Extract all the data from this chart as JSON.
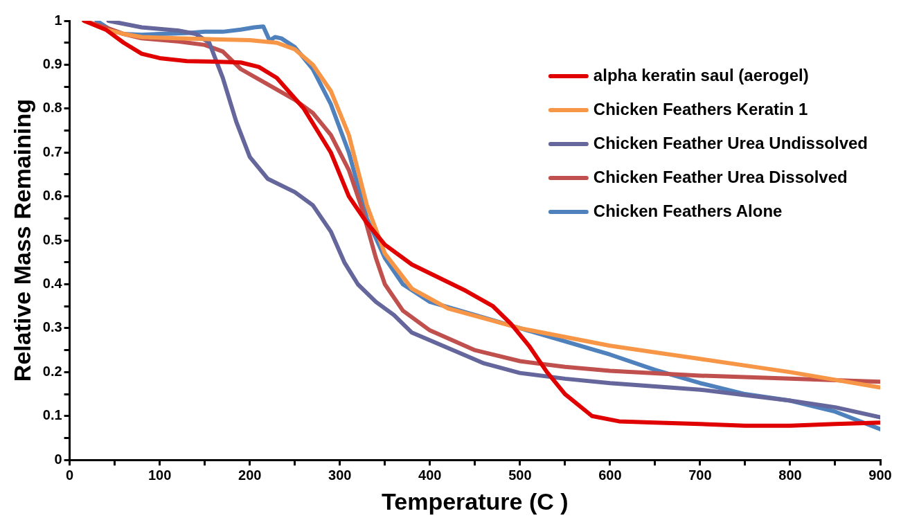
{
  "chart_data": {
    "type": "line",
    "xlabel": "Temperature (C )",
    "ylabel": "Relative Mass Remaining",
    "xlim": [
      0,
      900
    ],
    "ylim": [
      0,
      1
    ],
    "xticks": [
      0,
      {
        "value": 50,
        "label": null
      },
      100,
      {
        "value": 150,
        "label": null
      },
      200,
      {
        "value": 250,
        "label": null
      },
      300,
      {
        "value": 350,
        "label": null
      },
      400,
      {
        "value": 450,
        "label": null
      },
      500,
      {
        "value": 550,
        "label": null
      },
      600,
      {
        "value": 650,
        "label": null
      },
      700,
      {
        "value": 750,
        "label": null
      },
      800,
      {
        "value": 850,
        "label": null
      },
      900
    ],
    "yticks": [
      0,
      {
        "value": 0.05,
        "label": null
      },
      0.1,
      {
        "value": 0.15,
        "label": null
      },
      0.2,
      {
        "value": 0.25,
        "label": null
      },
      0.3,
      {
        "value": 0.35,
        "label": null
      },
      0.4,
      {
        "value": 0.45,
        "label": null
      },
      0.5,
      {
        "value": 0.55,
        "label": null
      },
      0.6,
      {
        "value": 0.65,
        "label": null
      },
      0.7,
      {
        "value": 0.75,
        "label": null
      },
      0.8,
      {
        "value": 0.85,
        "label": null
      },
      0.9,
      {
        "value": 0.95,
        "label": null
      },
      1
    ],
    "grid": false,
    "legend": "top right",
    "marker": "none",
    "line_style": "solid",
    "series": [
      {
        "name": "alpha keratin saul (aerogel)",
        "color": "#e00000",
        "x": [
          16,
          40,
          60,
          80,
          100,
          130,
          160,
          190,
          210,
          230,
          260,
          290,
          310,
          330,
          350,
          380,
          410,
          440,
          470,
          490,
          510,
          530,
          550,
          580,
          610,
          650,
          700,
          750,
          800,
          850,
          900
        ],
        "values": [
          1.0,
          0.98,
          0.95,
          0.925,
          0.915,
          0.908,
          0.907,
          0.905,
          0.895,
          0.87,
          0.8,
          0.7,
          0.6,
          0.54,
          0.49,
          0.445,
          0.415,
          0.385,
          0.35,
          0.31,
          0.26,
          0.2,
          0.15,
          0.1,
          0.088,
          0.085,
          0.082,
          0.078,
          0.078,
          0.082,
          0.085
        ]
      },
      {
        "name": "Chicken Feathers Keratin 1",
        "color": "#f79646",
        "x": [
          16,
          40,
          60,
          80,
          120,
          160,
          200,
          230,
          250,
          270,
          290,
          310,
          330,
          350,
          380,
          420,
          500,
          600,
          700,
          800,
          900
        ],
        "values": [
          1.0,
          0.98,
          0.97,
          0.963,
          0.96,
          0.958,
          0.956,
          0.95,
          0.935,
          0.9,
          0.84,
          0.74,
          0.58,
          0.47,
          0.39,
          0.345,
          0.3,
          0.26,
          0.23,
          0.2,
          0.165
        ]
      },
      {
        "name": "Chicken Feather Urea Undissolved",
        "color": "#65669b",
        "x": [
          43,
          80,
          120,
          140,
          155,
          170,
          185,
          200,
          220,
          250,
          270,
          290,
          305,
          320,
          340,
          360,
          380,
          420,
          460,
          500,
          550,
          600,
          700,
          800,
          850,
          900
        ],
        "values": [
          1.0,
          0.985,
          0.978,
          0.97,
          0.95,
          0.87,
          0.77,
          0.69,
          0.64,
          0.61,
          0.58,
          0.52,
          0.45,
          0.4,
          0.36,
          0.33,
          0.29,
          0.255,
          0.22,
          0.198,
          0.185,
          0.175,
          0.16,
          0.135,
          0.12,
          0.097
        ]
      },
      {
        "name": "Chicken Feather Urea Dissolved",
        "color": "#c0504d",
        "x": [
          16,
          40,
          60,
          80,
          120,
          150,
          170,
          190,
          220,
          250,
          270,
          290,
          310,
          325,
          340,
          350,
          370,
          400,
          450,
          500,
          550,
          600,
          700,
          800,
          900
        ],
        "values": [
          1.0,
          0.985,
          0.97,
          0.96,
          0.953,
          0.945,
          0.93,
          0.89,
          0.855,
          0.82,
          0.79,
          0.74,
          0.66,
          0.57,
          0.46,
          0.4,
          0.34,
          0.295,
          0.25,
          0.225,
          0.212,
          0.203,
          0.192,
          0.185,
          0.178
        ]
      },
      {
        "name": "Chicken Feathers Alone",
        "color": "#4f81bd",
        "x": [
          30,
          45,
          60,
          80,
          100,
          130,
          150,
          170,
          190,
          205,
          215,
          222,
          228,
          235,
          250,
          270,
          290,
          310,
          330,
          350,
          370,
          400,
          450,
          500,
          550,
          600,
          650,
          700,
          750,
          800,
          850,
          900
        ],
        "values": [
          1.0,
          0.98,
          0.97,
          0.968,
          0.97,
          0.972,
          0.975,
          0.975,
          0.98,
          0.985,
          0.987,
          0.955,
          0.963,
          0.96,
          0.94,
          0.89,
          0.81,
          0.7,
          0.55,
          0.46,
          0.4,
          0.36,
          0.33,
          0.3,
          0.27,
          0.24,
          0.205,
          0.175,
          0.15,
          0.135,
          0.11,
          0.07
        ]
      }
    ]
  }
}
